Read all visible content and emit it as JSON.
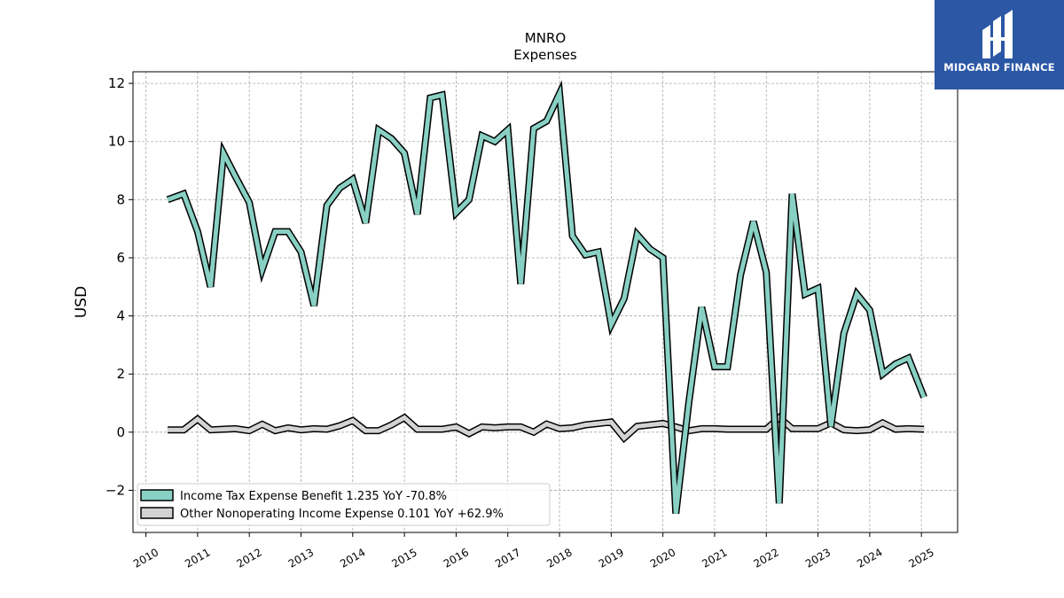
{
  "brand": {
    "name": "MIDGARD FINANCE",
    "color": "#2b57a5"
  },
  "chart_data": {
    "type": "line",
    "title": "MNRO",
    "subtitle": "Expenses",
    "xlabel": "",
    "ylabel": "USD",
    "xlim": [
      2009.75,
      2025.7
    ],
    "ylim": [
      -3.45,
      12.4
    ],
    "grid": true,
    "legend_position": "lower-left",
    "x_ticks": [
      "2010",
      "2011",
      "2012",
      "2013",
      "2014",
      "2015",
      "2016",
      "2017",
      "2018",
      "2019",
      "2020",
      "2021",
      "2022",
      "2023",
      "2024",
      "2025"
    ],
    "y_ticks": [
      -2,
      0,
      2,
      4,
      6,
      8,
      10,
      12
    ],
    "series": [
      {
        "name": "Income Tax Expense Benefit",
        "legend": "Income Tax Expense Benefit  1.235 YoY -70.8%",
        "color": "#88d0c3",
        "x": [
          2010.42,
          2010.73,
          2011.0,
          2011.25,
          2011.5,
          2011.73,
          2012.0,
          2012.25,
          2012.5,
          2012.75,
          2013.0,
          2013.25,
          2013.5,
          2013.75,
          2014.0,
          2014.25,
          2014.5,
          2014.75,
          2015.0,
          2015.25,
          2015.5,
          2015.73,
          2016.0,
          2016.25,
          2016.5,
          2016.75,
          2017.0,
          2017.25,
          2017.5,
          2017.75,
          2018.0,
          2018.25,
          2018.5,
          2018.75,
          2019.0,
          2019.25,
          2019.5,
          2019.75,
          2020.0,
          2020.25,
          2020.5,
          2020.75,
          2021.0,
          2021.25,
          2021.5,
          2021.75,
          2022.0,
          2022.25,
          2022.5,
          2022.75,
          2023.0,
          2023.25,
          2023.5,
          2023.75,
          2024.0,
          2024.25,
          2024.5,
          2024.75,
          2025.05
        ],
        "values": [
          8.0,
          8.2,
          6.9,
          5.0,
          9.6,
          8.8,
          7.9,
          5.6,
          6.9,
          6.9,
          6.2,
          4.35,
          7.8,
          8.4,
          8.7,
          7.2,
          10.4,
          10.1,
          9.6,
          7.5,
          11.5,
          11.6,
          7.55,
          8.0,
          10.2,
          10.0,
          10.4,
          5.1,
          10.45,
          10.7,
          11.65,
          6.75,
          6.1,
          6.2,
          3.7,
          4.6,
          6.8,
          6.3,
          6.0,
          -2.8,
          1.0,
          4.3,
          2.25,
          2.25,
          5.4,
          7.25,
          5.5,
          -2.45,
          8.2,
          4.75,
          4.95,
          0.2,
          3.4,
          4.75,
          4.2,
          2.0,
          2.35,
          2.55,
          1.2
        ]
      },
      {
        "name": "Other Nonoperating Income Expense",
        "legend": "Other Nonoperating Income Expense  0.101 YoY +62.9%",
        "color": "#d3d3d3",
        "x": [
          2010.42,
          2010.73,
          2011.0,
          2011.25,
          2011.5,
          2011.73,
          2012.0,
          2012.25,
          2012.5,
          2012.75,
          2013.0,
          2013.25,
          2013.5,
          2013.75,
          2014.0,
          2014.25,
          2014.5,
          2014.75,
          2015.0,
          2015.25,
          2015.5,
          2015.73,
          2016.0,
          2016.25,
          2016.5,
          2016.75,
          2017.0,
          2017.25,
          2017.5,
          2017.75,
          2018.0,
          2018.25,
          2018.5,
          2018.75,
          2019.0,
          2019.25,
          2019.5,
          2019.75,
          2020.0,
          2020.25,
          2020.5,
          2020.75,
          2021.0,
          2021.25,
          2021.5,
          2021.75,
          2022.0,
          2022.25,
          2022.5,
          2022.75,
          2023.0,
          2023.25,
          2023.5,
          2023.75,
          2024.0,
          2024.25,
          2024.5,
          2024.75,
          2025.05
        ],
        "values": [
          0.08,
          0.08,
          0.45,
          0.08,
          0.1,
          0.12,
          0.05,
          0.27,
          0.05,
          0.15,
          0.08,
          0.12,
          0.1,
          0.22,
          0.4,
          0.05,
          0.05,
          0.25,
          0.5,
          0.1,
          0.1,
          0.1,
          0.18,
          -0.05,
          0.18,
          0.15,
          0.18,
          0.18,
          0.0,
          0.28,
          0.12,
          0.15,
          0.25,
          0.3,
          0.35,
          -0.2,
          0.2,
          0.25,
          0.3,
          0.18,
          0.05,
          0.12,
          0.12,
          0.1,
          0.1,
          0.1,
          0.1,
          0.5,
          0.12,
          0.12,
          0.12,
          0.32,
          0.08,
          0.05,
          0.08,
          0.32,
          0.1,
          0.12,
          0.1
        ]
      }
    ]
  }
}
